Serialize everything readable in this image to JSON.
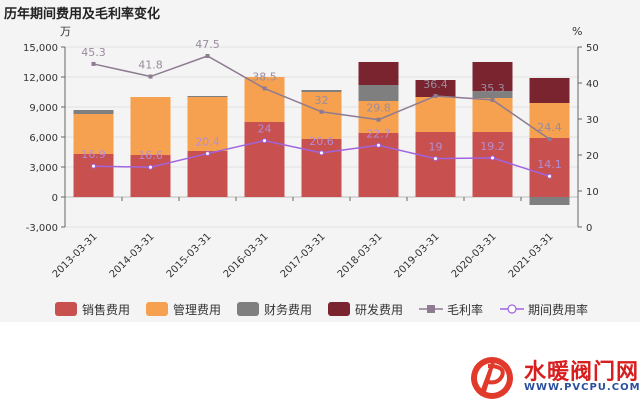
{
  "chart_data": {
    "type": "bar",
    "title": "历年期间费用及毛利率变化",
    "left_unit": "万",
    "right_unit": "%",
    "ylim_left": [
      -3000,
      15000
    ],
    "ylim_right": [
      0,
      50
    ],
    "left_ticks": [
      -3000,
      0,
      3000,
      6000,
      9000,
      12000,
      15000
    ],
    "left_tick_labels": [
      "-3,000",
      "0",
      "3,000",
      "6,000",
      "9,000",
      "12,000",
      "15,000"
    ],
    "right_ticks": [
      0,
      10,
      20,
      30,
      40,
      50
    ],
    "right_tick_labels": [
      "0",
      "10",
      "20",
      "30",
      "40",
      "50"
    ],
    "categories": [
      "2013-03-31",
      "2014-03-31",
      "2015-03-31",
      "2016-03-31",
      "2017-03-31",
      "2018-03-31",
      "2019-03-31",
      "2020-03-31",
      "2021-03-31"
    ],
    "bar_series": [
      {
        "name": "销售费用",
        "color": "#c8504f",
        "values": [
          4300,
          4200,
          4600,
          7500,
          5800,
          6400,
          6500,
          6500,
          5900
        ]
      },
      {
        "name": "管理费用",
        "color": "#f6a14f",
        "values": [
          4000,
          5800,
          5400,
          4500,
          4700,
          3200,
          3500,
          3400,
          3500
        ]
      },
      {
        "name": "财务费用",
        "color": "#7f7f7f",
        "values": [
          400,
          0,
          100,
          0,
          200,
          1600,
          0,
          700,
          -800
        ]
      },
      {
        "name": "研发费用",
        "color": "#7a2430",
        "values": [
          0,
          0,
          0,
          0,
          0,
          2300,
          1700,
          2900,
          2500
        ]
      }
    ],
    "line_series": [
      {
        "name": "毛利率",
        "color": "#8e7b91",
        "values": [
          45.3,
          41.8,
          47.5,
          38.5,
          32,
          29.8,
          36.4,
          35.3,
          24.4
        ]
      },
      {
        "name": "期间费用率",
        "color": "#a064e0",
        "values": [
          16.9,
          16.6,
          20.4,
          24,
          20.6,
          22.7,
          19,
          19.2,
          14.1
        ]
      }
    ]
  },
  "watermark": {
    "text": "水暖阀门网",
    "url": "WWW.PVCPU.COM"
  }
}
